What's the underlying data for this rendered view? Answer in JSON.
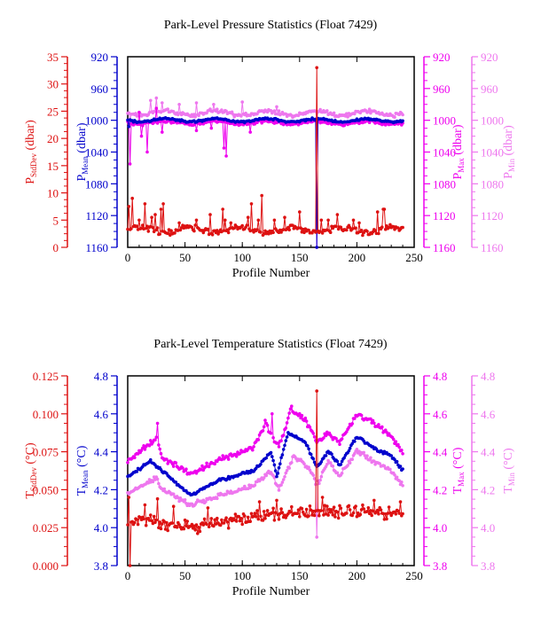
{
  "colors": {
    "stddev": "#dd1111",
    "mean": "#0000cc",
    "max": "#ee00ee",
    "min": "#ee77ee",
    "frame": "#000000"
  },
  "chart_data": [
    {
      "type": "line",
      "title": "Park-Level Pressure Statistics (Float 7429)",
      "xlabel": "Profile Number",
      "xlim": [
        0,
        250
      ],
      "xticks": [
        "0",
        "50",
        "100",
        "150",
        "200",
        "250"
      ],
      "axes": [
        {
          "key": "stddev",
          "label": "P",
          "sub": "StdDev",
          "unit": " (dbar)",
          "ylim": [
            0,
            35
          ],
          "ticks": [
            "0",
            "5",
            "10",
            "15",
            "20",
            "25",
            "30",
            "35"
          ],
          "inverted": false
        },
        {
          "key": "mean",
          "label": "P",
          "sub": "Mean",
          "unit": " (dbar)",
          "ylim": [
            920,
            1160
          ],
          "ticks": [
            "920",
            "960",
            "1000",
            "1040",
            "1080",
            "1120",
            "1160"
          ],
          "inverted": true
        },
        {
          "key": "max",
          "label": "P",
          "sub": "Max",
          "unit": " (dbar)",
          "ylim": [
            920,
            1160
          ],
          "ticks": [
            "920",
            "960",
            "1000",
            "1040",
            "1080",
            "1120",
            "1160"
          ],
          "inverted": true
        },
        {
          "key": "min",
          "label": "P",
          "sub": "Min",
          "unit": " (dbar)",
          "ylim": [
            920,
            1160
          ],
          "ticks": [
            "920",
            "960",
            "1000",
            "1040",
            "1080",
            "1120",
            "1160"
          ],
          "inverted": true
        }
      ],
      "series": [
        {
          "key": "stddev",
          "base": 3.2,
          "amp": 0.5,
          "trend": [],
          "noise": 0.7,
          "spikes": [
            [
              1,
              7.5
            ],
            [
              4,
              9
            ],
            [
              10,
              5
            ],
            [
              15,
              8
            ],
            [
              21,
              5.5
            ],
            [
              24,
              6
            ],
            [
              29,
              7
            ],
            [
              31,
              8
            ],
            [
              45,
              4.5
            ],
            [
              60,
              5
            ],
            [
              72,
              6
            ],
            [
              83,
              7
            ],
            [
              85,
              5
            ],
            [
              90,
              4.5
            ],
            [
              105,
              5.5
            ],
            [
              108,
              8
            ],
            [
              114,
              5
            ],
            [
              117,
              9.5
            ],
            [
              128,
              5
            ],
            [
              137,
              5.5
            ],
            [
              150,
              6.5
            ],
            [
              165,
              33
            ],
            [
              169,
              5
            ],
            [
              175,
              5
            ],
            [
              183,
              6
            ],
            [
              197,
              5
            ],
            [
              202,
              4.5
            ],
            [
              218,
              6.5
            ],
            [
              223,
              7
            ],
            [
              224,
              7
            ]
          ],
          "dips": []
        },
        {
          "key": "mean",
          "base": 1000,
          "amp": 2,
          "trend": [],
          "noise": 1.5,
          "spikes": [
            [
              1,
              1008
            ],
            [
              165,
              1160
            ]
          ],
          "dips": []
        },
        {
          "key": "max",
          "base": 1003,
          "amp": 2,
          "trend": [],
          "noise": 2.5,
          "spikes": [
            [
              2,
              1055
            ],
            [
              12,
              1020
            ],
            [
              17,
              1040
            ],
            [
              30,
              1015
            ],
            [
              60,
              1013
            ],
            [
              73,
              1010
            ],
            [
              84,
              1035
            ],
            [
              86,
              1045
            ],
            [
              107,
              1015
            ],
            [
              165,
              1160
            ]
          ],
          "dips": [
            [
              10,
              990
            ],
            [
              25,
              985
            ]
          ]
        },
        {
          "key": "min",
          "base": 991,
          "amp": 3,
          "trend": [],
          "noise": 3,
          "spikes": [
            [
              2,
              1000
            ],
            [
              165,
              1000
            ]
          ],
          "dips": [
            [
              20,
              975
            ],
            [
              25,
              972
            ],
            [
              30,
              978
            ],
            [
              45,
              980
            ],
            [
              60,
              978
            ],
            [
              75,
              980
            ],
            [
              100,
              977
            ],
            [
              130,
              983
            ],
            [
              165,
              910
            ]
          ]
        }
      ]
    },
    {
      "type": "line",
      "title": "Park-Level Temperature Statistics (Float 7429)",
      "xlabel": "Profile Number",
      "xlim": [
        0,
        250
      ],
      "xticks": [
        "0",
        "50",
        "100",
        "150",
        "200",
        "250"
      ],
      "axes": [
        {
          "key": "stddev",
          "label": "T",
          "sub": "StdDev",
          "unit": " (°C)",
          "ylim": [
            0,
            0.125
          ],
          "ticks": [
            "0.000",
            "0.025",
            "0.050",
            "0.075",
            "0.100",
            "0.125"
          ],
          "inverted": false
        },
        {
          "key": "mean",
          "label": "T",
          "sub": "Mean",
          "unit": " (°C)",
          "ylim": [
            3.8,
            4.8
          ],
          "ticks": [
            "3.8",
            "4.0",
            "4.2",
            "4.4",
            "4.6",
            "4.8"
          ],
          "inverted": false
        },
        {
          "key": "max",
          "label": "T",
          "sub": "Max",
          "unit": " (°C)",
          "ylim": [
            3.8,
            4.8
          ],
          "ticks": [
            "3.8",
            "4.0",
            "4.2",
            "4.4",
            "4.6",
            "4.8"
          ],
          "inverted": false
        },
        {
          "key": "min",
          "label": "T",
          "sub": "Min",
          "unit": " (°C)",
          "ylim": [
            3.8,
            4.8
          ],
          "ticks": [
            "3.8",
            "4.0",
            "4.2",
            "4.4",
            "4.6",
            "4.8"
          ],
          "inverted": false
        }
      ],
      "series": [
        {
          "key": "stddev",
          "base": 0.031,
          "amp": 0,
          "trend": [
            [
              0,
              0.03
            ],
            [
              60,
              0.026
            ],
            [
              120,
              0.033
            ],
            [
              170,
              0.036
            ],
            [
              240,
              0.034
            ]
          ],
          "noise": 0.005,
          "spikes": [
            [
              1,
              0.045
            ],
            [
              15,
              0.04
            ],
            [
              26,
              0.044
            ],
            [
              40,
              0.039
            ],
            [
              70,
              0.038
            ],
            [
              115,
              0.042
            ],
            [
              130,
              0.043
            ],
            [
              165,
              0.115
            ],
            [
              170,
              0.045
            ],
            [
              215,
              0.043
            ],
            [
              238,
              0.042
            ]
          ],
          "dips": [
            [
              2,
              0.0
            ]
          ]
        },
        {
          "key": "mean",
          "base": 4.3,
          "amp": 0,
          "trend": [
            [
              0,
              4.27
            ],
            [
              20,
              4.35
            ],
            [
              30,
              4.3
            ],
            [
              55,
              4.17
            ],
            [
              80,
              4.25
            ],
            [
              110,
              4.3
            ],
            [
              125,
              4.4
            ],
            [
              130,
              4.27
            ],
            [
              140,
              4.5
            ],
            [
              155,
              4.45
            ],
            [
              165,
              4.32
            ],
            [
              175,
              4.4
            ],
            [
              185,
              4.33
            ],
            [
              200,
              4.48
            ],
            [
              215,
              4.42
            ],
            [
              230,
              4.38
            ],
            [
              240,
              4.3
            ]
          ],
          "noise": 0.01,
          "spikes": [],
          "dips": []
        },
        {
          "key": "max",
          "base": 4.4,
          "amp": 0,
          "trend": [
            [
              0,
              4.35
            ],
            [
              25,
              4.47
            ],
            [
              30,
              4.37
            ],
            [
              55,
              4.28
            ],
            [
              80,
              4.36
            ],
            [
              110,
              4.42
            ],
            [
              120,
              4.55
            ],
            [
              132,
              4.42
            ],
            [
              142,
              4.62
            ],
            [
              155,
              4.57
            ],
            [
              165,
              4.45
            ],
            [
              175,
              4.5
            ],
            [
              185,
              4.45
            ],
            [
              200,
              4.6
            ],
            [
              215,
              4.55
            ],
            [
              230,
              4.48
            ],
            [
              240,
              4.4
            ]
          ],
          "noise": 0.018,
          "spikes": [
            [
              26,
              4.55
            ],
            [
              126,
              4.6
            ],
            [
              143,
              4.64
            ]
          ],
          "dips": []
        },
        {
          "key": "min",
          "base": 4.2,
          "amp": 0,
          "trend": [
            [
              0,
              4.18
            ],
            [
              25,
              4.26
            ],
            [
              30,
              4.2
            ],
            [
              55,
              4.12
            ],
            [
              80,
              4.17
            ],
            [
              110,
              4.22
            ],
            [
              125,
              4.3
            ],
            [
              132,
              4.2
            ],
            [
              145,
              4.38
            ],
            [
              160,
              4.3
            ],
            [
              165,
              4.22
            ],
            [
              175,
              4.35
            ],
            [
              185,
              4.27
            ],
            [
              200,
              4.41
            ],
            [
              215,
              4.35
            ],
            [
              230,
              4.3
            ],
            [
              240,
              4.22
            ]
          ],
          "noise": 0.015,
          "spikes": [],
          "dips": [
            [
              165,
              3.95
            ]
          ]
        }
      ]
    }
  ]
}
